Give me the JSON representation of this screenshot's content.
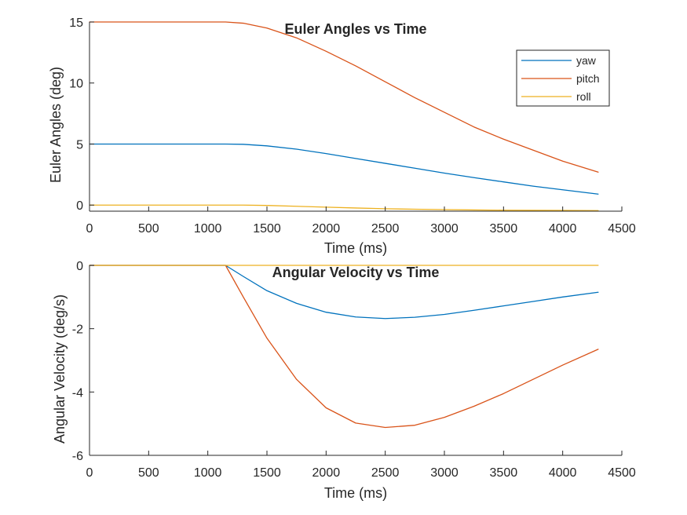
{
  "chart_data": [
    {
      "type": "line",
      "title": "Euler Angles vs Time",
      "xlabel": "Time (ms)",
      "ylabel": "Euler Angles (deg)",
      "xlim": [
        0,
        4500
      ],
      "ylim": [
        -0.5,
        15
      ],
      "xticks": [
        "0",
        "500",
        "1000",
        "1500",
        "2000",
        "2500",
        "3000",
        "3500",
        "4000",
        "4500"
      ],
      "yticks": [
        "0",
        "5",
        "10",
        "15"
      ],
      "grid": false,
      "legend": {
        "placement": "top-right",
        "entries": [
          "yaw",
          "pitch",
          "roll"
        ]
      },
      "x": [
        0,
        500,
        1000,
        1150,
        1300,
        1500,
        1750,
        2000,
        2250,
        2500,
        2750,
        3000,
        3250,
        3500,
        3750,
        4000,
        4300
      ],
      "series": [
        {
          "name": "yaw",
          "color": "#0072BD",
          "values": [
            5.0,
            5.0,
            5.0,
            5.0,
            4.98,
            4.85,
            4.58,
            4.22,
            3.82,
            3.42,
            3.02,
            2.62,
            2.25,
            1.9,
            1.55,
            1.25,
            0.9
          ]
        },
        {
          "name": "pitch",
          "color": "#D95319",
          "values": [
            15.0,
            15.0,
            15.0,
            15.0,
            14.9,
            14.5,
            13.7,
            12.6,
            11.4,
            10.1,
            8.8,
            7.6,
            6.4,
            5.4,
            4.5,
            3.6,
            2.7
          ]
        },
        {
          "name": "roll",
          "color": "#EDB120",
          "values": [
            0.0,
            0.0,
            0.0,
            0.0,
            0.0,
            -0.03,
            -0.1,
            -0.17,
            -0.24,
            -0.3,
            -0.34,
            -0.37,
            -0.4,
            -0.42,
            -0.43,
            -0.44,
            -0.45
          ]
        }
      ]
    },
    {
      "type": "line",
      "title": "Angular Velocity vs Time",
      "xlabel": "Time (ms)",
      "ylabel": "Angular Velocity (deg/s)",
      "xlim": [
        0,
        4500
      ],
      "ylim": [
        -6,
        0
      ],
      "xticks": [
        "0",
        "500",
        "1000",
        "1500",
        "2000",
        "2500",
        "3000",
        "3500",
        "4000",
        "4500"
      ],
      "yticks": [
        "-6",
        "-4",
        "-2",
        "0"
      ],
      "grid": false,
      "x": [
        0,
        500,
        1000,
        1150,
        1300,
        1500,
        1750,
        2000,
        2250,
        2500,
        2750,
        3000,
        3250,
        3500,
        3750,
        4000,
        4300
      ],
      "series": [
        {
          "color": "#0072BD",
          "values": [
            0,
            0,
            0,
            0,
            -0.35,
            -0.8,
            -1.2,
            -1.48,
            -1.63,
            -1.68,
            -1.64,
            -1.55,
            -1.42,
            -1.28,
            -1.14,
            -1.0,
            -0.85
          ]
        },
        {
          "color": "#D95319",
          "values": [
            0,
            0,
            0,
            0,
            -1.0,
            -2.3,
            -3.6,
            -4.5,
            -4.98,
            -5.12,
            -5.05,
            -4.8,
            -4.45,
            -4.05,
            -3.6,
            -3.15,
            -2.65
          ]
        },
        {
          "color": "#EDB120",
          "values": [
            0,
            0,
            0,
            0,
            0,
            0,
            0,
            0,
            0,
            0,
            0,
            0,
            0,
            0,
            0,
            0,
            0
          ]
        }
      ]
    }
  ]
}
